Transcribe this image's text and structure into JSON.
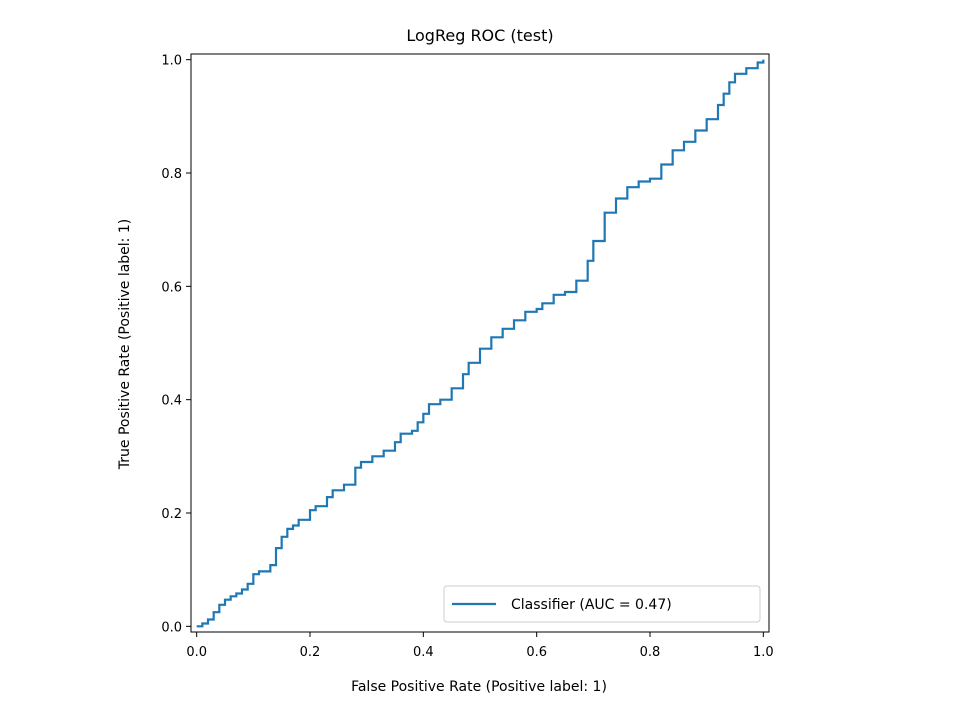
{
  "chart_data": {
    "type": "line",
    "title": "LogReg ROC (test)",
    "xlabel": "False Positive Rate (Positive label: 1)",
    "ylabel": "True Positive Rate (Positive label: 1)",
    "xlim": [
      -0.01,
      1.01
    ],
    "ylim": [
      -0.01,
      1.01
    ],
    "xticks": [
      "0.0",
      "0.2",
      "0.4",
      "0.6",
      "0.8",
      "1.0"
    ],
    "yticks": [
      "0.0",
      "0.2",
      "0.4",
      "0.6",
      "0.8",
      "1.0"
    ],
    "grid": false,
    "legend_position": "lower-right",
    "series": [
      {
        "name": "Classifier (AUC = 0.47)",
        "color": "#1f77b4",
        "drawstyle": "steps",
        "x": [
          0.0,
          0.01,
          0.02,
          0.03,
          0.04,
          0.05,
          0.06,
          0.07,
          0.08,
          0.09,
          0.1,
          0.11,
          0.13,
          0.14,
          0.15,
          0.16,
          0.17,
          0.18,
          0.2,
          0.21,
          0.23,
          0.24,
          0.26,
          0.28,
          0.29,
          0.31,
          0.33,
          0.35,
          0.36,
          0.38,
          0.39,
          0.4,
          0.41,
          0.43,
          0.45,
          0.47,
          0.48,
          0.5,
          0.52,
          0.54,
          0.56,
          0.58,
          0.6,
          0.61,
          0.63,
          0.65,
          0.67,
          0.69,
          0.7,
          0.72,
          0.74,
          0.76,
          0.78,
          0.8,
          0.82,
          0.84,
          0.86,
          0.88,
          0.9,
          0.92,
          0.93,
          0.94,
          0.95,
          0.97,
          0.99,
          1.0
        ],
        "y": [
          0.0,
          0.005,
          0.012,
          0.025,
          0.038,
          0.047,
          0.053,
          0.058,
          0.065,
          0.075,
          0.092,
          0.097,
          0.108,
          0.138,
          0.158,
          0.172,
          0.178,
          0.188,
          0.205,
          0.212,
          0.228,
          0.24,
          0.25,
          0.28,
          0.29,
          0.3,
          0.31,
          0.325,
          0.34,
          0.345,
          0.36,
          0.375,
          0.392,
          0.4,
          0.42,
          0.445,
          0.465,
          0.49,
          0.51,
          0.525,
          0.54,
          0.555,
          0.56,
          0.57,
          0.585,
          0.59,
          0.61,
          0.645,
          0.68,
          0.73,
          0.755,
          0.775,
          0.785,
          0.79,
          0.815,
          0.84,
          0.855,
          0.875,
          0.895,
          0.92,
          0.94,
          0.96,
          0.975,
          0.985,
          0.995,
          1.0
        ]
      }
    ]
  }
}
